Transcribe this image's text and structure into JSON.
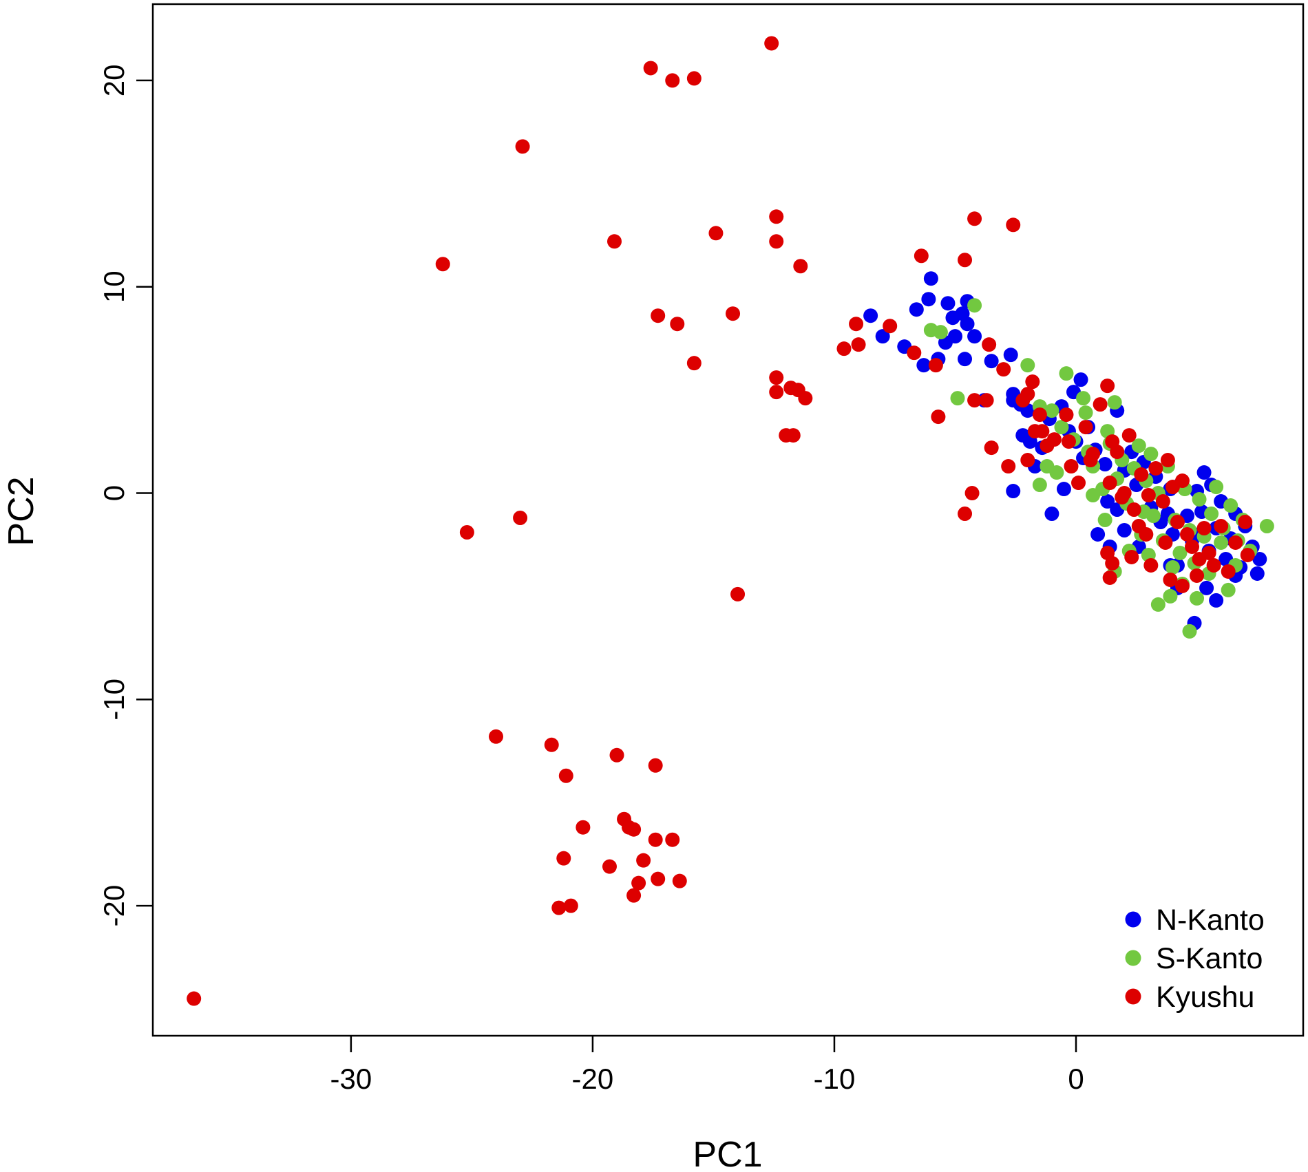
{
  "chart_data": {
    "type": "scatter",
    "title": "",
    "xlabel": "PC1",
    "ylabel": "PC2",
    "xlim": [
      -38.2,
      9.4
    ],
    "ylim": [
      -26.3,
      23.7
    ],
    "x_ticks": [
      -30,
      -20,
      -10,
      0
    ],
    "y_ticks": [
      20,
      10,
      0,
      -10,
      -20
    ],
    "x_tick_labels": [
      "-30",
      "-20",
      "-10",
      "0"
    ],
    "y_tick_labels": [
      "20",
      "10",
      "0",
      "-10",
      "-20"
    ],
    "grid": false,
    "legend_position": "bottom-right",
    "series": [
      {
        "name": "N-Kanto",
        "color": "#0000ee",
        "points": [
          [
            -8.5,
            8.6
          ],
          [
            -8.0,
            7.6
          ],
          [
            -7.1,
            7.1
          ],
          [
            -6.6,
            8.9
          ],
          [
            -6.3,
            6.2
          ],
          [
            -6.0,
            10.4
          ],
          [
            -6.1,
            9.4
          ],
          [
            -5.7,
            6.5
          ],
          [
            -5.3,
            9.2
          ],
          [
            -5.1,
            8.5
          ],
          [
            -5.0,
            7.6
          ],
          [
            -5.4,
            7.3
          ],
          [
            -4.7,
            8.7
          ],
          [
            -4.5,
            9.3
          ],
          [
            -4.5,
            8.2
          ],
          [
            -4.2,
            7.6
          ],
          [
            -4.6,
            6.5
          ],
          [
            -3.5,
            6.4
          ],
          [
            -3.8,
            4.5
          ],
          [
            -2.7,
            6.7
          ],
          [
            -2.6,
            4.8
          ],
          [
            -2.3,
            4.3
          ],
          [
            -2.0,
            4.0
          ],
          [
            -2.6,
            4.5
          ],
          [
            -2.2,
            2.8
          ],
          [
            -1.9,
            2.5
          ],
          [
            -1.4,
            2.2
          ],
          [
            -1.1,
            3.6
          ],
          [
            -0.6,
            4.2
          ],
          [
            -0.3,
            3.0
          ],
          [
            -0.1,
            4.9
          ],
          [
            0.2,
            5.5
          ],
          [
            0.0,
            2.5
          ],
          [
            0.3,
            1.7
          ],
          [
            0.5,
            3.2
          ],
          [
            0.8,
            2.1
          ],
          [
            1.2,
            1.4
          ],
          [
            1.7,
            4.0
          ],
          [
            1.3,
            -0.4
          ],
          [
            1.7,
            -0.8
          ],
          [
            2.0,
            1.1
          ],
          [
            2.3,
            2.0
          ],
          [
            2.5,
            0.4
          ],
          [
            2.8,
            1.5
          ],
          [
            3.1,
            -0.7
          ],
          [
            3.3,
            0.8
          ],
          [
            3.5,
            -1.4
          ],
          [
            3.9,
            0.2
          ],
          [
            4.0,
            -2.0
          ],
          [
            4.2,
            -3.5
          ],
          [
            4.3,
            0.4
          ],
          [
            4.6,
            -1.1
          ],
          [
            4.8,
            -2.3
          ],
          [
            5.0,
            0.1
          ],
          [
            5.2,
            -0.9
          ],
          [
            5.3,
            1.0
          ],
          [
            5.5,
            -2.8
          ],
          [
            5.6,
            0.4
          ],
          [
            5.8,
            -1.7
          ],
          [
            6.0,
            -0.4
          ],
          [
            6.2,
            -3.2
          ],
          [
            6.4,
            -2.2
          ],
          [
            6.6,
            -1.0
          ],
          [
            6.8,
            -3.6
          ],
          [
            7.0,
            -1.6
          ],
          [
            7.3,
            -2.6
          ],
          [
            7.5,
            -3.9
          ],
          [
            7.6,
            -3.2
          ],
          [
            5.8,
            -5.2
          ],
          [
            4.9,
            -6.3
          ],
          [
            4.2,
            -4.6
          ],
          [
            3.9,
            -3.5
          ],
          [
            2.0,
            -1.8
          ],
          [
            2.6,
            -2.6
          ],
          [
            0.9,
            -2.0
          ],
          [
            1.4,
            -2.6
          ],
          [
            -1.0,
            -1.0
          ],
          [
            -0.5,
            0.2
          ],
          [
            -2.6,
            0.1
          ],
          [
            -1.7,
            1.3
          ],
          [
            5.4,
            -4.6
          ],
          [
            6.6,
            -4.0
          ],
          [
            5.1,
            -2.0
          ],
          [
            3.8,
            -1.0
          ]
        ]
      },
      {
        "name": "S-Kanto",
        "color": "#72c840",
        "points": [
          [
            -6.0,
            7.9
          ],
          [
            -5.6,
            7.8
          ],
          [
            -4.2,
            9.1
          ],
          [
            -4.9,
            4.6
          ],
          [
            -2.0,
            6.2
          ],
          [
            -1.5,
            4.2
          ],
          [
            -1.0,
            4.0
          ],
          [
            -0.6,
            3.2
          ],
          [
            -0.4,
            5.8
          ],
          [
            -0.1,
            2.6
          ],
          [
            0.3,
            4.6
          ],
          [
            0.4,
            3.9
          ],
          [
            0.5,
            2.0
          ],
          [
            -0.8,
            1.0
          ],
          [
            -1.5,
            0.4
          ],
          [
            -1.2,
            1.3
          ],
          [
            0.7,
            1.3
          ],
          [
            1.1,
            0.2
          ],
          [
            1.3,
            3.0
          ],
          [
            1.4,
            2.4
          ],
          [
            1.6,
            4.4
          ],
          [
            1.9,
            1.6
          ],
          [
            2.1,
            -0.5
          ],
          [
            2.4,
            1.2
          ],
          [
            2.6,
            2.3
          ],
          [
            2.9,
            0.6
          ],
          [
            3.1,
            1.9
          ],
          [
            3.2,
            -1.1
          ],
          [
            3.4,
            0.0
          ],
          [
            3.6,
            -2.3
          ],
          [
            3.8,
            1.3
          ],
          [
            4.1,
            -1.3
          ],
          [
            4.3,
            -2.9
          ],
          [
            4.5,
            0.2
          ],
          [
            4.7,
            -1.8
          ],
          [
            4.9,
            -3.4
          ],
          [
            5.1,
            -0.3
          ],
          [
            5.3,
            -2.1
          ],
          [
            5.6,
            -1.0
          ],
          [
            5.8,
            0.3
          ],
          [
            6.1,
            -1.7
          ],
          [
            6.4,
            -0.6
          ],
          [
            6.7,
            -2.3
          ],
          [
            6.9,
            -1.3
          ],
          [
            7.2,
            -2.8
          ],
          [
            7.9,
            -1.6
          ],
          [
            6.3,
            -4.7
          ],
          [
            5.0,
            -5.1
          ],
          [
            4.7,
            -6.7
          ],
          [
            3.4,
            -5.4
          ],
          [
            3.9,
            -5.0
          ],
          [
            1.6,
            -3.8
          ],
          [
            1.2,
            -1.3
          ],
          [
            0.7,
            -0.1
          ],
          [
            2.7,
            -2.0
          ],
          [
            4.0,
            -3.6
          ],
          [
            5.5,
            -3.9
          ],
          [
            6.0,
            -2.4
          ],
          [
            3.0,
            -3.0
          ],
          [
            2.2,
            -2.8
          ],
          [
            4.4,
            -4.4
          ],
          [
            6.6,
            -3.5
          ],
          [
            1.7,
            0.7
          ],
          [
            2.8,
            -0.9
          ]
        ]
      },
      {
        "name": "Kyushu",
        "color": "#dd0000",
        "points": [
          [
            -12.6,
            21.8
          ],
          [
            -17.6,
            20.6
          ],
          [
            -16.7,
            20.0
          ],
          [
            -15.8,
            20.1
          ],
          [
            -22.9,
            16.8
          ],
          [
            -19.1,
            12.2
          ],
          [
            -26.2,
            11.1
          ],
          [
            -14.9,
            12.6
          ],
          [
            -12.4,
            13.4
          ],
          [
            -12.4,
            12.2
          ],
          [
            -11.4,
            11.0
          ],
          [
            -17.3,
            8.6
          ],
          [
            -16.5,
            8.2
          ],
          [
            -14.2,
            8.7
          ],
          [
            -15.8,
            6.3
          ],
          [
            -12.4,
            5.6
          ],
          [
            -12.4,
            4.9
          ],
          [
            -11.8,
            5.1
          ],
          [
            -11.5,
            5.0
          ],
          [
            -11.2,
            4.6
          ],
          [
            -12.0,
            2.8
          ],
          [
            -11.7,
            2.8
          ],
          [
            -25.2,
            -1.9
          ],
          [
            -23.0,
            -1.2
          ],
          [
            -14.0,
            -4.9
          ],
          [
            -24.0,
            -11.8
          ],
          [
            -21.7,
            -12.2
          ],
          [
            -21.1,
            -13.7
          ],
          [
            -19.0,
            -12.7
          ],
          [
            -17.4,
            -13.2
          ],
          [
            -20.4,
            -16.2
          ],
          [
            -18.7,
            -15.8
          ],
          [
            -18.5,
            -16.2
          ],
          [
            -18.3,
            -16.3
          ],
          [
            -17.4,
            -16.8
          ],
          [
            -16.7,
            -16.8
          ],
          [
            -21.2,
            -17.7
          ],
          [
            -19.3,
            -18.1
          ],
          [
            -17.9,
            -17.8
          ],
          [
            -18.1,
            -18.9
          ],
          [
            -17.3,
            -18.7
          ],
          [
            -16.4,
            -18.8
          ],
          [
            -18.3,
            -19.5
          ],
          [
            -21.4,
            -20.1
          ],
          [
            -20.9,
            -20.0
          ],
          [
            -36.5,
            -24.5
          ],
          [
            -9.6,
            7.0
          ],
          [
            -9.1,
            8.2
          ],
          [
            -9.0,
            7.2
          ],
          [
            -7.7,
            8.1
          ],
          [
            -6.4,
            11.5
          ],
          [
            -6.7,
            6.8
          ],
          [
            -5.8,
            6.2
          ],
          [
            -5.7,
            3.7
          ],
          [
            -4.6,
            11.3
          ],
          [
            -4.2,
            13.3
          ],
          [
            -2.6,
            13.0
          ],
          [
            -3.6,
            7.2
          ],
          [
            -3.0,
            6.0
          ],
          [
            -4.2,
            4.5
          ],
          [
            -3.7,
            4.5
          ],
          [
            -4.3,
            0.0
          ],
          [
            -4.6,
            -1.0
          ],
          [
            -3.5,
            2.2
          ],
          [
            -2.0,
            4.8
          ],
          [
            -1.8,
            5.4
          ],
          [
            -2.2,
            4.5
          ],
          [
            -1.7,
            3.0
          ],
          [
            -1.5,
            3.8
          ],
          [
            -1.4,
            3.0
          ],
          [
            -1.2,
            2.3
          ],
          [
            -2.0,
            1.6
          ],
          [
            -2.8,
            1.3
          ],
          [
            -0.4,
            3.8
          ],
          [
            -0.3,
            2.5
          ],
          [
            -0.2,
            1.3
          ],
          [
            0.4,
            3.2
          ],
          [
            0.7,
            1.9
          ],
          [
            0.6,
            1.6
          ],
          [
            1.0,
            4.3
          ],
          [
            1.3,
            5.2
          ],
          [
            1.5,
            2.5
          ],
          [
            1.4,
            0.5
          ],
          [
            1.7,
            2.0
          ],
          [
            2.2,
            2.8
          ],
          [
            2.0,
            0.0
          ],
          [
            2.4,
            -0.8
          ],
          [
            2.7,
            0.9
          ],
          [
            3.0,
            -0.1
          ],
          [
            3.3,
            1.2
          ],
          [
            3.6,
            -0.4
          ],
          [
            3.8,
            1.6
          ],
          [
            4.0,
            0.3
          ],
          [
            4.2,
            -1.4
          ],
          [
            4.4,
            0.6
          ],
          [
            4.6,
            -2.0
          ],
          [
            4.8,
            -2.6
          ],
          [
            5.1,
            -3.2
          ],
          [
            5.3,
            -1.7
          ],
          [
            5.5,
            -2.9
          ],
          [
            5.7,
            -3.5
          ],
          [
            6.0,
            -1.6
          ],
          [
            6.3,
            -3.8
          ],
          [
            6.6,
            -2.4
          ],
          [
            7.0,
            -1.4
          ],
          [
            7.1,
            -3.0
          ],
          [
            3.9,
            -4.2
          ],
          [
            4.4,
            -4.5
          ],
          [
            5.0,
            -4.0
          ],
          [
            1.3,
            -2.9
          ],
          [
            1.5,
            -3.4
          ],
          [
            1.4,
            -4.1
          ],
          [
            2.3,
            -3.1
          ],
          [
            2.9,
            -2.0
          ],
          [
            3.1,
            -3.5
          ],
          [
            3.7,
            -2.4
          ],
          [
            2.6,
            -1.6
          ],
          [
            1.9,
            -0.2
          ],
          [
            0.1,
            0.5
          ],
          [
            -0.9,
            2.6
          ]
        ]
      }
    ]
  }
}
